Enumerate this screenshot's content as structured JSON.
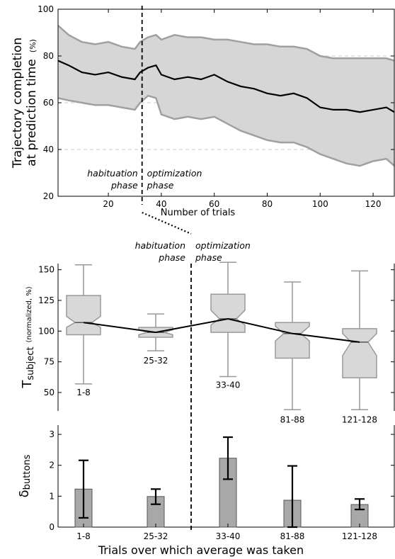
{
  "chart_data": [
    {
      "type": "area",
      "ylabel_line1": "Trajectory completion",
      "ylabel_line2": "at prediction time",
      "ylabel_unit": "(%)",
      "xlabel": "Number of trials",
      "xlim": [
        1,
        128
      ],
      "ylim": [
        20,
        100
      ],
      "xticks": [
        20,
        40,
        60,
        80,
        100,
        120
      ],
      "yticks": [
        20,
        40,
        60,
        80,
        100
      ],
      "grid": "horizontal dashed at 40, 60, 80",
      "phase_boundary_x": 33,
      "phase_labels": {
        "habituation_line1": "habituation",
        "habituation_line2": "phase",
        "optimization_line1": "optimization",
        "optimization_line2": "phase"
      },
      "series": [
        {
          "role": "mean",
          "x": [
            1,
            5,
            10,
            15,
            20,
            25,
            30,
            32,
            35,
            38,
            40,
            45,
            50,
            55,
            60,
            65,
            70,
            75,
            80,
            85,
            90,
            95,
            100,
            105,
            110,
            115,
            120,
            125,
            128
          ],
          "y": [
            78,
            76,
            73,
            72,
            73,
            71,
            70,
            73,
            75,
            76,
            72,
            70,
            71,
            70,
            72,
            69,
            67,
            66,
            64,
            63,
            64,
            62,
            58,
            57,
            57,
            56,
            57,
            58,
            56
          ]
        },
        {
          "role": "upper",
          "x": [
            1,
            5,
            10,
            15,
            20,
            25,
            30,
            32,
            35,
            38,
            40,
            45,
            50,
            55,
            60,
            65,
            70,
            75,
            80,
            85,
            90,
            95,
            100,
            105,
            110,
            115,
            120,
            125,
            128
          ],
          "y": [
            93,
            89,
            86,
            85,
            86,
            84,
            83,
            86,
            88,
            89,
            87,
            89,
            88,
            88,
            87,
            87,
            86,
            85,
            85,
            84,
            84,
            83,
            80,
            79,
            79,
            79,
            79,
            79,
            78
          ]
        },
        {
          "role": "lower",
          "x": [
            1,
            5,
            10,
            15,
            20,
            25,
            30,
            32,
            35,
            38,
            40,
            45,
            50,
            55,
            60,
            65,
            70,
            75,
            80,
            85,
            90,
            95,
            100,
            105,
            110,
            115,
            120,
            125,
            128
          ],
          "y": [
            62,
            61,
            60,
            59,
            59,
            58,
            57,
            60,
            63,
            62,
            55,
            53,
            54,
            53,
            54,
            51,
            48,
            46,
            44,
            43,
            43,
            41,
            38,
            36,
            34,
            33,
            35,
            36,
            33
          ]
        }
      ]
    },
    {
      "type": "box",
      "ylabel_main": "T",
      "ylabel_sub": "subject",
      "ylabel_unit": "(normalized, %)",
      "ylim": [
        35,
        155
      ],
      "yticks": [
        50,
        75,
        100,
        125,
        150
      ],
      "phase_labels": {
        "habituation_line1": "habituation",
        "habituation_line2": "phase",
        "optimization_line1": "optimization",
        "optimization_line2": "phase"
      },
      "categories": [
        "1-8",
        "25-32",
        "33-40",
        "81-88",
        "121-128"
      ],
      "boxes": [
        {
          "label": "1-8",
          "whisker_low": 57,
          "q1": 97,
          "median": 107,
          "q3": 129,
          "whisker_high": 154,
          "notch_low": 103,
          "notch_high": 112
        },
        {
          "label": "25-32",
          "whisker_low": 84,
          "q1": 95,
          "median": 99,
          "q3": 103,
          "whisker_high": 114,
          "notch_low": 97,
          "notch_high": 101
        },
        {
          "label": "33-40",
          "whisker_low": 63,
          "q1": 99,
          "median": 110,
          "q3": 130,
          "whisker_high": 156,
          "notch_low": 105,
          "notch_high": 117
        },
        {
          "label": "81-88",
          "whisker_low": 36,
          "q1": 78,
          "median": 98,
          "q3": 107,
          "whisker_high": 140,
          "notch_low": 92,
          "notch_high": 104
        },
        {
          "label": "121-128",
          "whisker_low": 36,
          "q1": 62,
          "median": 91,
          "q3": 102,
          "whisker_high": 149,
          "notch_low": 80,
          "notch_high": 98
        }
      ],
      "median_line": true
    },
    {
      "type": "bar",
      "ylabel_main": "δ",
      "ylabel_sub": "buttons",
      "xlabel": "Trials over which average was taken",
      "ylim": [
        0,
        3.3
      ],
      "yticks": [
        0,
        1,
        2,
        3
      ],
      "categories": [
        "1-8",
        "25-32",
        "33-40",
        "81-88",
        "121-128"
      ],
      "values": [
        1.23,
        0.99,
        2.23,
        0.87,
        0.73
      ],
      "errors_low": [
        0.3,
        0.74,
        1.55,
        0.0,
        0.57
      ],
      "errors_high": [
        2.16,
        1.23,
        2.91,
        1.98,
        0.91
      ]
    }
  ]
}
